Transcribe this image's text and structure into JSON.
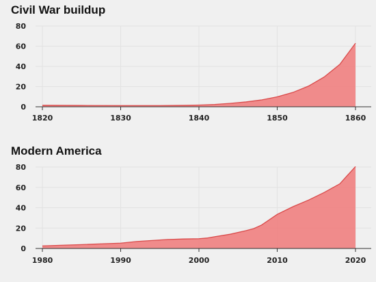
{
  "chart_data": [
    {
      "type": "area",
      "title": "Civil War buildup",
      "xlabel": "",
      "ylabel": "",
      "xlim": [
        1820,
        1860
      ],
      "ylim": [
        0,
        80
      ],
      "xticks": [
        1820,
        1830,
        1840,
        1850,
        1860
      ],
      "yticks": [
        0,
        20,
        40,
        60,
        80
      ],
      "grid": true,
      "color": "#f08080",
      "line_color": "#d94a4a",
      "series": [
        {
          "x": [
            1820,
            1825,
            1830,
            1835,
            1838,
            1840,
            1842,
            1844,
            1846,
            1848,
            1850,
            1852,
            1854,
            1856,
            1858,
            1860
          ],
          "values": [
            1.5,
            1.3,
            1.2,
            1.2,
            1.4,
            1.7,
            2.3,
            3.4,
            4.8,
            6.8,
            9.8,
            14.2,
            20.5,
            29.5,
            42,
            63
          ]
        }
      ]
    },
    {
      "type": "area",
      "title": "Modern America",
      "xlabel": "",
      "ylabel": "",
      "xlim": [
        1980,
        2020
      ],
      "ylim": [
        0,
        80
      ],
      "xticks": [
        1980,
        1990,
        2000,
        2010,
        2020
      ],
      "yticks": [
        0,
        20,
        40,
        60,
        80
      ],
      "grid": true,
      "color": "#f08080",
      "line_color": "#d94a4a",
      "series": [
        {
          "x": [
            1980,
            1985,
            1990,
            1992,
            1994,
            1996,
            1998,
            2000,
            2001,
            2002,
            2004,
            2006,
            2007,
            2008,
            2010,
            2012,
            2014,
            2016,
            2018,
            2020
          ],
          "values": [
            2.5,
            3.8,
            5.2,
            6.8,
            7.8,
            8.8,
            9.3,
            9.6,
            10.2,
            11.5,
            14,
            17.5,
            19.5,
            23,
            33.5,
            41,
            47.5,
            55,
            63.5,
            80.5
          ]
        }
      ]
    }
  ]
}
